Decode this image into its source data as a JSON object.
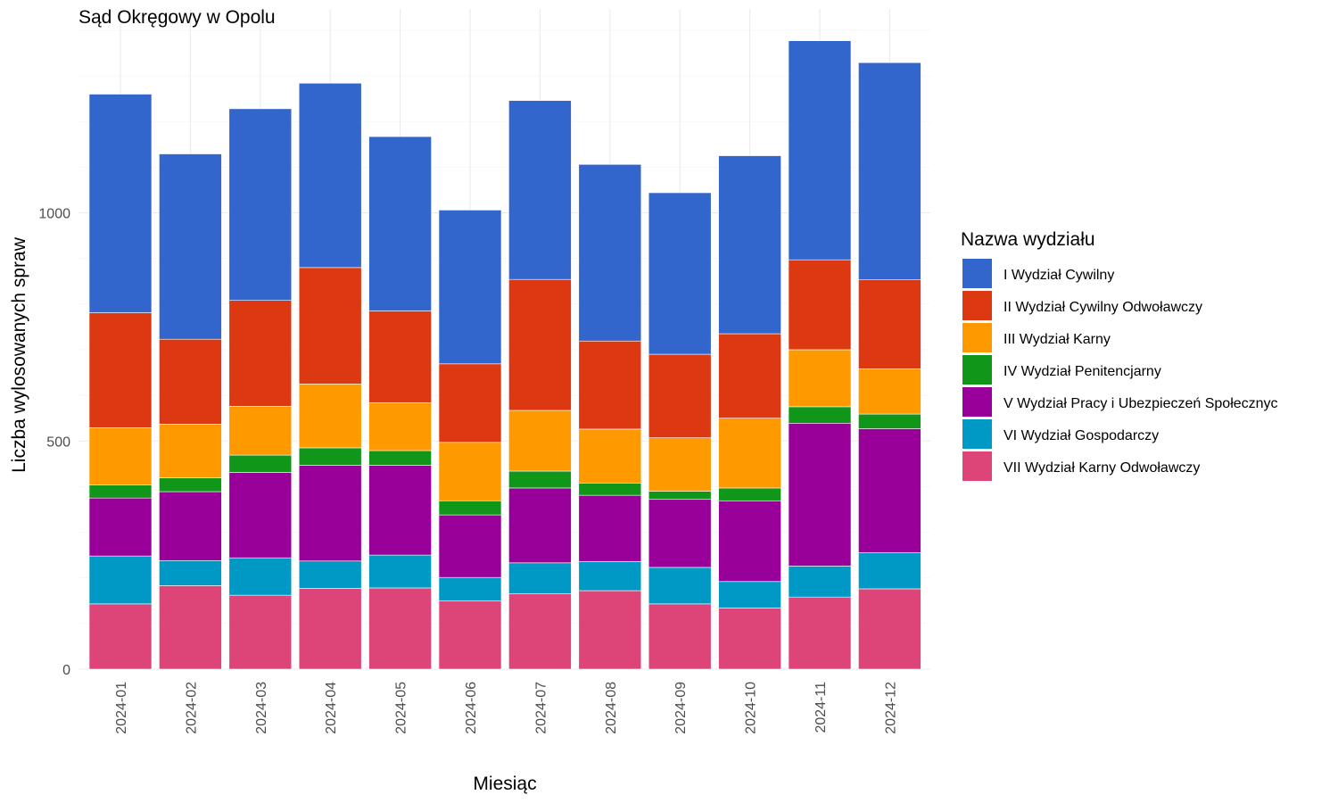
{
  "chart_data": {
    "type": "bar",
    "stacked": true,
    "title": "Sąd Okręgowy w Opolu",
    "xlabel": "Miesiąc",
    "ylabel": "Liczba wylosowanych spraw",
    "ylim": [
      0,
      1450
    ],
    "yticks": [
      0,
      500,
      1000
    ],
    "grid": true,
    "legend_position": "right",
    "legend_title": "Nazwa wydziału",
    "categories": [
      "2024-01",
      "2024-02",
      "2024-03",
      "2024-04",
      "2024-05",
      "2024-06",
      "2024-07",
      "2024-08",
      "2024-09",
      "2024-10",
      "2024-11",
      "2024-12"
    ],
    "series": [
      {
        "name": "VII Wydział Karny Odwoławczy",
        "color": "#DD4477",
        "values": [
          143,
          183,
          162,
          177,
          178,
          150,
          165,
          172,
          143,
          134,
          158,
          176
        ]
      },
      {
        "name": "VI Wydział Gospodarczy",
        "color": "#0099C6",
        "values": [
          105,
          55,
          82,
          60,
          72,
          51,
          68,
          64,
          80,
          58,
          68,
          79
        ]
      },
      {
        "name": "V Wydział Pracy i Ubezpieczeń Społecznyc",
        "color": "#990099",
        "values": [
          127,
          151,
          187,
          210,
          197,
          137,
          164,
          145,
          149,
          177,
          313,
          272
        ]
      },
      {
        "name": "IV Wydział Penitencjarny",
        "color": "#109618",
        "values": [
          29,
          30,
          38,
          38,
          32,
          31,
          37,
          27,
          18,
          28,
          36,
          32
        ]
      },
      {
        "name": "III Wydział Karny",
        "color": "#FF9900",
        "values": [
          125,
          118,
          107,
          140,
          105,
          128,
          133,
          118,
          117,
          153,
          125,
          99
        ]
      },
      {
        "name": "II Wydział Cywilny Odwoławczy",
        "color": "#DC3912",
        "values": [
          252,
          186,
          232,
          255,
          201,
          172,
          287,
          193,
          183,
          185,
          197,
          195
        ]
      },
      {
        "name": "I Wydział Cywilny",
        "color": "#3366CC",
        "values": [
          479,
          406,
          420,
          404,
          382,
          337,
          392,
          387,
          354,
          390,
          480,
          476
        ]
      }
    ],
    "legend_order": [
      "I Wydział Cywilny",
      "II Wydział Cywilny Odwoławczy",
      "III Wydział Karny",
      "IV Wydział Penitencjarny",
      "V Wydział Pracy i Ubezpieczeń Społecznyc",
      "VI Wydział Gospodarczy",
      "VII Wydział Karny Odwoławczy"
    ]
  }
}
